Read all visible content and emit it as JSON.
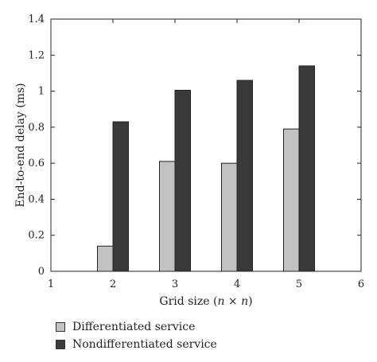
{
  "chart_data": {
    "type": "bar",
    "xlabel_prefix": "Grid size (",
    "xlabel_var": "n × n",
    "xlabel_suffix": ")",
    "ylabel": "End-to-end delay (ms)",
    "xlim": [
      1,
      6
    ],
    "ylim": [
      0,
      1.4
    ],
    "xticks": [
      "1",
      "2",
      "3",
      "4",
      "5",
      "6"
    ],
    "yticks": [
      "0",
      "0.2",
      "0.4",
      "0.6",
      "0.8",
      "1",
      "1.2",
      "1.4"
    ],
    "x": [
      2,
      3,
      4,
      5
    ],
    "series": [
      {
        "name": "Differentiated service",
        "values": [
          0.14,
          0.61,
          0.6,
          0.79
        ],
        "color": "#c2c2c2"
      },
      {
        "name": "Nondifferentiated service",
        "values": [
          0.83,
          1.005,
          1.06,
          1.14
        ],
        "color": "#3a3a3a"
      }
    ],
    "legend_position": "bottom-left"
  }
}
